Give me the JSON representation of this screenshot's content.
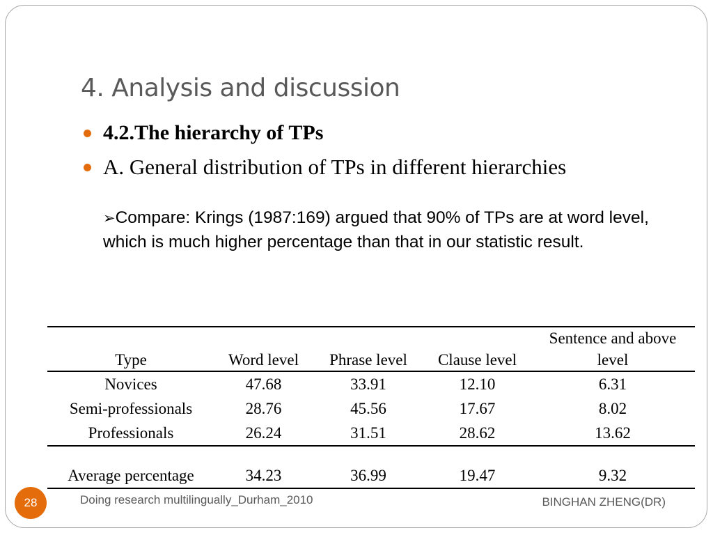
{
  "slide": {
    "title": "4. Analysis and discussion",
    "bullets": [
      "4.2.The hierarchy of TPs",
      "A. General distribution of TPs in different hierarchies"
    ],
    "compare_marker": "➢",
    "compare_text": "Compare: Krings (1987:169) argued that 90% of TPs are at word level, which is much higher percentage than that in our statistic result."
  },
  "table": {
    "headers": [
      "Type",
      "Word level",
      "Phrase level",
      "Clause level",
      "Sentence and above level"
    ],
    "header_sentence_line1": "Sentence and above",
    "header_sentence_line2": "level",
    "rows": [
      [
        "Novices",
        "47.68",
        "33.91",
        "12.10",
        "6.31"
      ],
      [
        "Semi-professionals",
        "28.76",
        "45.56",
        "17.67",
        "8.02"
      ],
      [
        "Professionals",
        "26.24",
        "31.51",
        "28.62",
        "13.62"
      ]
    ],
    "average_row": [
      "Average percentage",
      "34.23",
      "36.99",
      "19.47",
      "9.32"
    ]
  },
  "footer": {
    "page_number": "28",
    "left_text": "Doing research multilingually_Durham_2010",
    "right_text": "BINGHAN ZHENG(DR)"
  },
  "colors": {
    "accent": "#e46c0a",
    "title": "#595959"
  }
}
